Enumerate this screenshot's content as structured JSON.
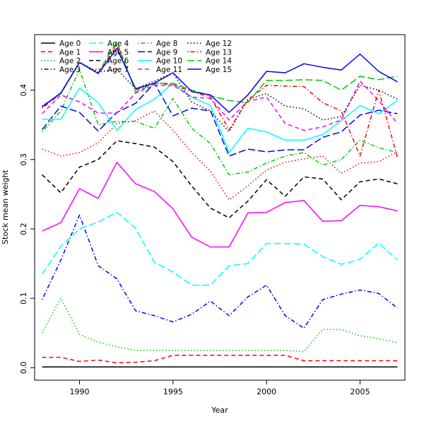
{
  "chart_data": {
    "type": "line",
    "title": "",
    "xlabel": "Year",
    "ylabel": "Stock mean weight",
    "xlim": [
      1987.6,
      2007.4
    ],
    "ylim": [
      -0.018,
      0.48
    ],
    "x_ticks": [
      1990,
      1995,
      2000,
      2005
    ],
    "y_ticks": [
      0.0,
      0.1,
      0.2,
      0.3,
      0.4
    ],
    "x_tick_labels": [
      "1990",
      "1995",
      "2000",
      "2005"
    ],
    "y_tick_labels": [
      "0.0",
      "0.1",
      "0.2",
      "0.3",
      "0.4"
    ],
    "legend_position": "top-left",
    "x": [
      1988,
      1989,
      1990,
      1991,
      1992,
      1993,
      1994,
      1995,
      1996,
      1997,
      1998,
      1999,
      2000,
      2001,
      2002,
      2003,
      2004,
      2005,
      2006,
      2007
    ],
    "series": [
      {
        "name": "Age 0",
        "color": "#000000",
        "dash": "solid",
        "values": [
          0.001,
          0.001,
          0.001,
          0.001,
          0.001,
          0.001,
          0.001,
          0.001,
          0.001,
          0.001,
          0.001,
          0.001,
          0.001,
          0.001,
          0.001,
          0.001,
          0.001,
          0.001,
          0.001,
          0.001
        ]
      },
      {
        "name": "Age 1",
        "color": "#ff0000",
        "dash": "dashed",
        "values": [
          0.015,
          0.015,
          0.009,
          0.011,
          0.007,
          0.008,
          0.01,
          0.018,
          0.018,
          0.018,
          0.018,
          0.018,
          0.018,
          0.018,
          0.01,
          0.01,
          0.01,
          0.01,
          0.01,
          0.01
        ]
      },
      {
        "name": "Age 2",
        "color": "#00cd00",
        "dash": "dotted",
        "values": [
          0.05,
          0.1,
          0.048,
          0.037,
          0.03,
          0.025,
          0.025,
          0.025,
          0.025,
          0.025,
          0.025,
          0.025,
          0.025,
          0.025,
          0.023,
          0.055,
          0.055,
          0.046,
          0.042,
          0.036
        ]
      },
      {
        "name": "Age 3",
        "color": "#0000ff",
        "dash": "dotdash",
        "values": [
          0.098,
          0.155,
          0.22,
          0.147,
          0.128,
          0.082,
          0.075,
          0.066,
          0.077,
          0.096,
          0.075,
          0.102,
          0.119,
          0.075,
          0.057,
          0.098,
          0.106,
          0.112,
          0.107,
          0.086
        ]
      },
      {
        "name": "Age 4",
        "color": "#00ffff",
        "dash": "longdash",
        "values": [
          0.135,
          0.175,
          0.2,
          0.21,
          0.224,
          0.201,
          0.152,
          0.138,
          0.119,
          0.119,
          0.147,
          0.15,
          0.179,
          0.179,
          0.178,
          0.16,
          0.149,
          0.156,
          0.18,
          0.155
        ]
      },
      {
        "name": "Age 5",
        "color": "#ff00ff",
        "dash": "solid",
        "values": [
          0.197,
          0.209,
          0.258,
          0.244,
          0.296,
          0.265,
          0.254,
          0.229,
          0.188,
          0.174,
          0.174,
          0.223,
          0.224,
          0.238,
          0.241,
          0.211,
          0.212,
          0.234,
          0.232,
          0.226
        ]
      },
      {
        "name": "Age 6",
        "color": "#000000",
        "dash": "dashed",
        "values": [
          0.278,
          0.252,
          0.289,
          0.3,
          0.327,
          0.323,
          0.318,
          0.297,
          0.262,
          0.23,
          0.216,
          0.24,
          0.271,
          0.247,
          0.275,
          0.272,
          0.242,
          0.268,
          0.272,
          0.265
        ]
      },
      {
        "name": "Age 7",
        "color": "#ff0000",
        "dash": "dotted",
        "values": [
          0.315,
          0.305,
          0.31,
          0.324,
          0.352,
          0.356,
          0.37,
          0.342,
          0.31,
          0.283,
          0.242,
          0.262,
          0.285,
          0.296,
          0.301,
          0.305,
          0.28,
          0.295,
          0.297,
          0.311
        ]
      },
      {
        "name": "Age 8",
        "color": "#00cd00",
        "dash": "dotdash",
        "values": [
          0.34,
          0.37,
          0.43,
          0.35,
          0.355,
          0.355,
          0.345,
          0.388,
          0.345,
          0.323,
          0.278,
          0.282,
          0.295,
          0.305,
          0.31,
          0.292,
          0.3,
          0.328,
          0.317,
          0.31
        ]
      },
      {
        "name": "Age 9",
        "color": "#0000ff",
        "dash": "longdash",
        "values": [
          0.343,
          0.377,
          0.368,
          0.341,
          0.368,
          0.381,
          0.41,
          0.363,
          0.374,
          0.37,
          0.305,
          0.315,
          0.311,
          0.314,
          0.314,
          0.332,
          0.34,
          0.364,
          0.371,
          0.366
        ]
      },
      {
        "name": "Age 10",
        "color": "#00ffff",
        "dash": "solid",
        "values": [
          0.358,
          0.358,
          0.403,
          0.382,
          0.342,
          0.372,
          0.387,
          0.41,
          0.39,
          0.378,
          0.31,
          0.345,
          0.34,
          0.328,
          0.328,
          0.336,
          0.356,
          0.378,
          0.366,
          0.385
        ]
      },
      {
        "name": "Age 11",
        "color": "#ff00ff",
        "dash": "dashed",
        "values": [
          0.366,
          0.393,
          0.383,
          0.367,
          0.367,
          0.396,
          0.407,
          0.407,
          0.39,
          0.388,
          0.357,
          0.384,
          0.39,
          0.352,
          0.342,
          0.347,
          0.357,
          0.413,
          0.385,
          0.352
        ]
      },
      {
        "name": "Age 12",
        "color": "#000000",
        "dash": "dotted",
        "values": [
          0.377,
          0.395,
          0.44,
          0.426,
          0.43,
          0.402,
          0.413,
          0.425,
          0.383,
          0.37,
          0.34,
          0.387,
          0.395,
          0.377,
          0.373,
          0.357,
          0.362,
          0.407,
          0.4,
          0.387
        ]
      },
      {
        "name": "Age 13",
        "color": "#ff0000",
        "dash": "dotdash",
        "values": [
          0.374,
          0.395,
          0.44,
          0.424,
          0.465,
          0.4,
          0.41,
          0.408,
          0.398,
          0.39,
          0.343,
          0.386,
          0.407,
          0.406,
          0.405,
          0.382,
          0.37,
          0.305,
          0.4,
          0.303
        ]
      },
      {
        "name": "Age 14",
        "color": "#00cd00",
        "dash": "longdash",
        "values": [
          0.376,
          0.395,
          0.44,
          0.425,
          0.47,
          0.397,
          0.41,
          0.41,
          0.4,
          0.392,
          0.385,
          0.382,
          0.414,
          0.414,
          0.415,
          0.414,
          0.4,
          0.42,
          0.415,
          0.42
        ]
      },
      {
        "name": "Age 15",
        "color": "#0000ff",
        "dash": "solid",
        "values": [
          0.376,
          0.396,
          0.44,
          0.424,
          0.46,
          0.402,
          0.41,
          0.425,
          0.398,
          0.393,
          0.368,
          0.393,
          0.427,
          0.425,
          0.438,
          0.433,
          0.429,
          0.452,
          0.427,
          0.412
        ]
      }
    ]
  }
}
